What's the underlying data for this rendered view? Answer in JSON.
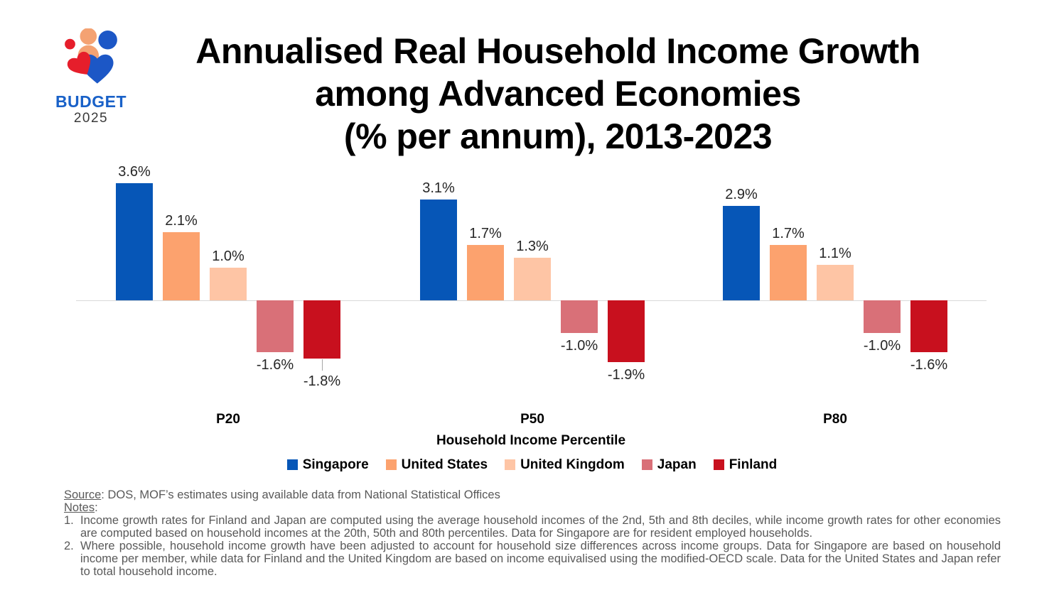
{
  "logo": {
    "budget": "BUDGET",
    "year": "2025"
  },
  "chart_data": {
    "type": "bar",
    "title": "Annualised Real Household Income Growth\namong Advanced Economies\n(% per annum), 2013-2023",
    "categories": [
      "P20",
      "P50",
      "P80"
    ],
    "series": [
      {
        "name": "Singapore",
        "color": "#0656B7",
        "values": [
          3.6,
          3.1,
          2.9
        ]
      },
      {
        "name": "United States",
        "color": "#FCA26E",
        "values": [
          2.1,
          1.7,
          1.7
        ]
      },
      {
        "name": "United Kingdom",
        "color": "#FEC5A5",
        "values": [
          1.0,
          1.3,
          1.1
        ]
      },
      {
        "name": "Japan",
        "color": "#D97078",
        "values": [
          -1.6,
          -1.0,
          -1.0
        ]
      },
      {
        "name": "Finland",
        "color": "#C8101E",
        "values": [
          -1.8,
          -1.9,
          -1.6
        ]
      }
    ],
    "value_labels": [
      [
        "3.6%",
        "2.1%",
        "1.0%",
        "-1.6%",
        "-1.8%"
      ],
      [
        "3.1%",
        "1.7%",
        "1.3%",
        "-1.0%",
        "-1.9%"
      ],
      [
        "2.9%",
        "1.7%",
        "1.1%",
        "-1.0%",
        "-1.6%"
      ]
    ],
    "xlabel": "Household Income Percentile",
    "ylabel": "",
    "ylim": [
      -2.2,
      3.9
    ],
    "baseline": 0,
    "grid": false,
    "legend_position": "bottom",
    "axis_line_color": "#D9D9D9",
    "callout": {
      "category": "P20",
      "series": "Finland"
    }
  },
  "footer": {
    "source_label": "Source",
    "source_text": ": DOS, MOF’s estimates using available data from National Statistical Offices",
    "notes_label": "Notes",
    "notes_colon": ":",
    "notes": [
      "Income growth rates for Finland and Japan are computed using the average household incomes of the 2nd, 5th and 8th deciles, while income growth rates for other economies are computed based on household incomes at the 20th, 50th and 80th percentiles. Data for Singapore are for resident employed households.",
      "Where possible, household income growth have been adjusted to account for household size differences across income groups. Data for Singapore are based on household income per member, while data for Finland and the United Kingdom are based on income equivalised using the modified-OECD scale. Data for the United States and Japan refer to total household income."
    ]
  }
}
